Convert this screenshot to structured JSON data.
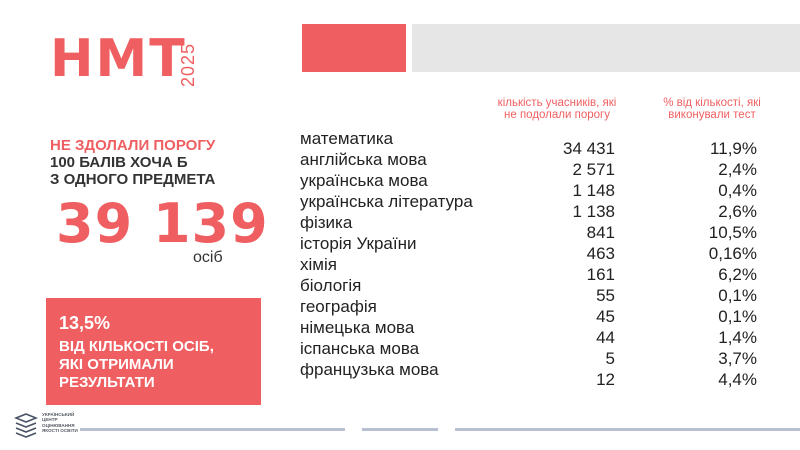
{
  "header": {
    "title": "НМТ",
    "year": "2025"
  },
  "summary": {
    "heading_red": "НЕ ЗДОЛАЛИ ПОРОГУ",
    "heading_line2": "100 БАЛІВ ХОЧА Б",
    "heading_line3": "З ОДНОГО ПРЕДМЕТА",
    "total": "39 139",
    "unit": "осіб",
    "share_percent": "13,5%",
    "share_line1": "ВІД КІЛЬКОСТІ ОСІБ,",
    "share_line2": "ЯКІ ОТРИМАЛИ",
    "share_line3": "РЕЗУЛЬТАТИ"
  },
  "table": {
    "col_count_line1": "кількість учасників, які",
    "col_count_line2": "не подолали порогу",
    "col_pct_line1": "% від кількості, які",
    "col_pct_line2": "виконували тест",
    "rows": [
      {
        "subject": "математика",
        "count": "34 431",
        "pct": "11,9%"
      },
      {
        "subject": "англійська мова",
        "count": "2 571",
        "pct": "2,4%"
      },
      {
        "subject": "українська мова",
        "count": "1 148",
        "pct": "0,4%"
      },
      {
        "subject": "українська література",
        "count": "1 138",
        "pct": "2,6%"
      },
      {
        "subject": "фізика",
        "count": "841",
        "pct": "10,5%"
      },
      {
        "subject": "історія України",
        "count": "463",
        "pct": "0,16%"
      },
      {
        "subject": "хімія",
        "count": "161",
        "pct": "6,2%"
      },
      {
        "subject": "біологія",
        "count": "55",
        "pct": "0,1%"
      },
      {
        "subject": "географія",
        "count": "45",
        "pct": "0,1%"
      },
      {
        "subject": "німецька мова",
        "count": "44",
        "pct": "1,4%"
      },
      {
        "subject": "іспанська мова",
        "count": "5",
        "pct": "3,7%"
      },
      {
        "subject": "французька мова",
        "count": "12",
        "pct": "4,4%"
      }
    ]
  },
  "footer": {
    "logo_line1": "УКРАЇНСЬКИЙ",
    "logo_line2": "ЦЕНТР",
    "logo_line3": "ОЦІНЮВАННЯ",
    "logo_line4": "ЯКОСТІ ОСВІТИ"
  },
  "colors": {
    "accent": "#ef5f61",
    "grey_block": "#e6e6e6",
    "text": "#222222",
    "footer_line": "#b7c1d2"
  }
}
